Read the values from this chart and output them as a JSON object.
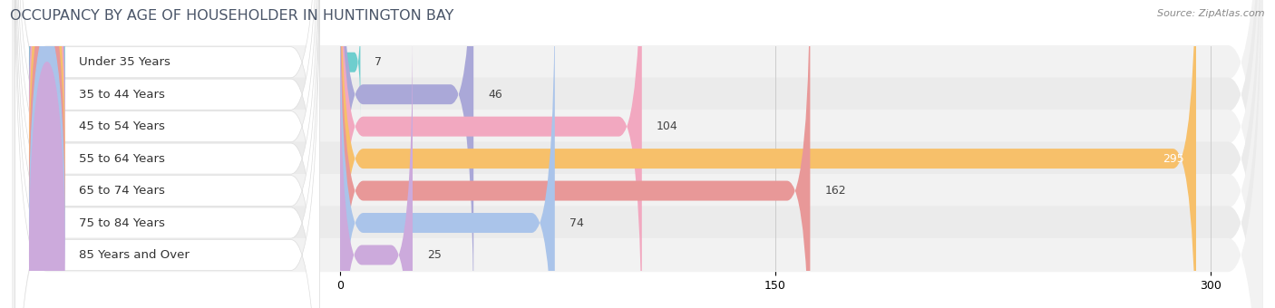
{
  "title": "OCCUPANCY BY AGE OF HOUSEHOLDER IN HUNTINGTON BAY",
  "source": "Source: ZipAtlas.com",
  "categories": [
    "Under 35 Years",
    "35 to 44 Years",
    "45 to 54 Years",
    "55 to 64 Years",
    "65 to 74 Years",
    "75 to 84 Years",
    "85 Years and Over"
  ],
  "values": [
    7,
    46,
    104,
    295,
    162,
    74,
    25
  ],
  "bar_colors": [
    "#6ecece",
    "#aaa8d8",
    "#f2a8c0",
    "#f7c06a",
    "#e89898",
    "#aac4ea",
    "#ccaadc"
  ],
  "xlim_left": -115,
  "xlim_right": 320,
  "xticks": [
    0,
    150,
    300
  ],
  "title_fontsize": 11.5,
  "label_fontsize": 9.5,
  "value_fontsize": 9,
  "bar_height": 0.62,
  "background_color": "#ffffff",
  "row_bg_color_odd": "#f2f2f2",
  "row_bg_color_even": "#ebebeb",
  "title_color": "#4a5568",
  "source_color": "#888888",
  "label_bg_color": "#ffffff",
  "label_text_color": "#333333",
  "value_color_outside": "#444444",
  "value_color_inside": "#ffffff"
}
